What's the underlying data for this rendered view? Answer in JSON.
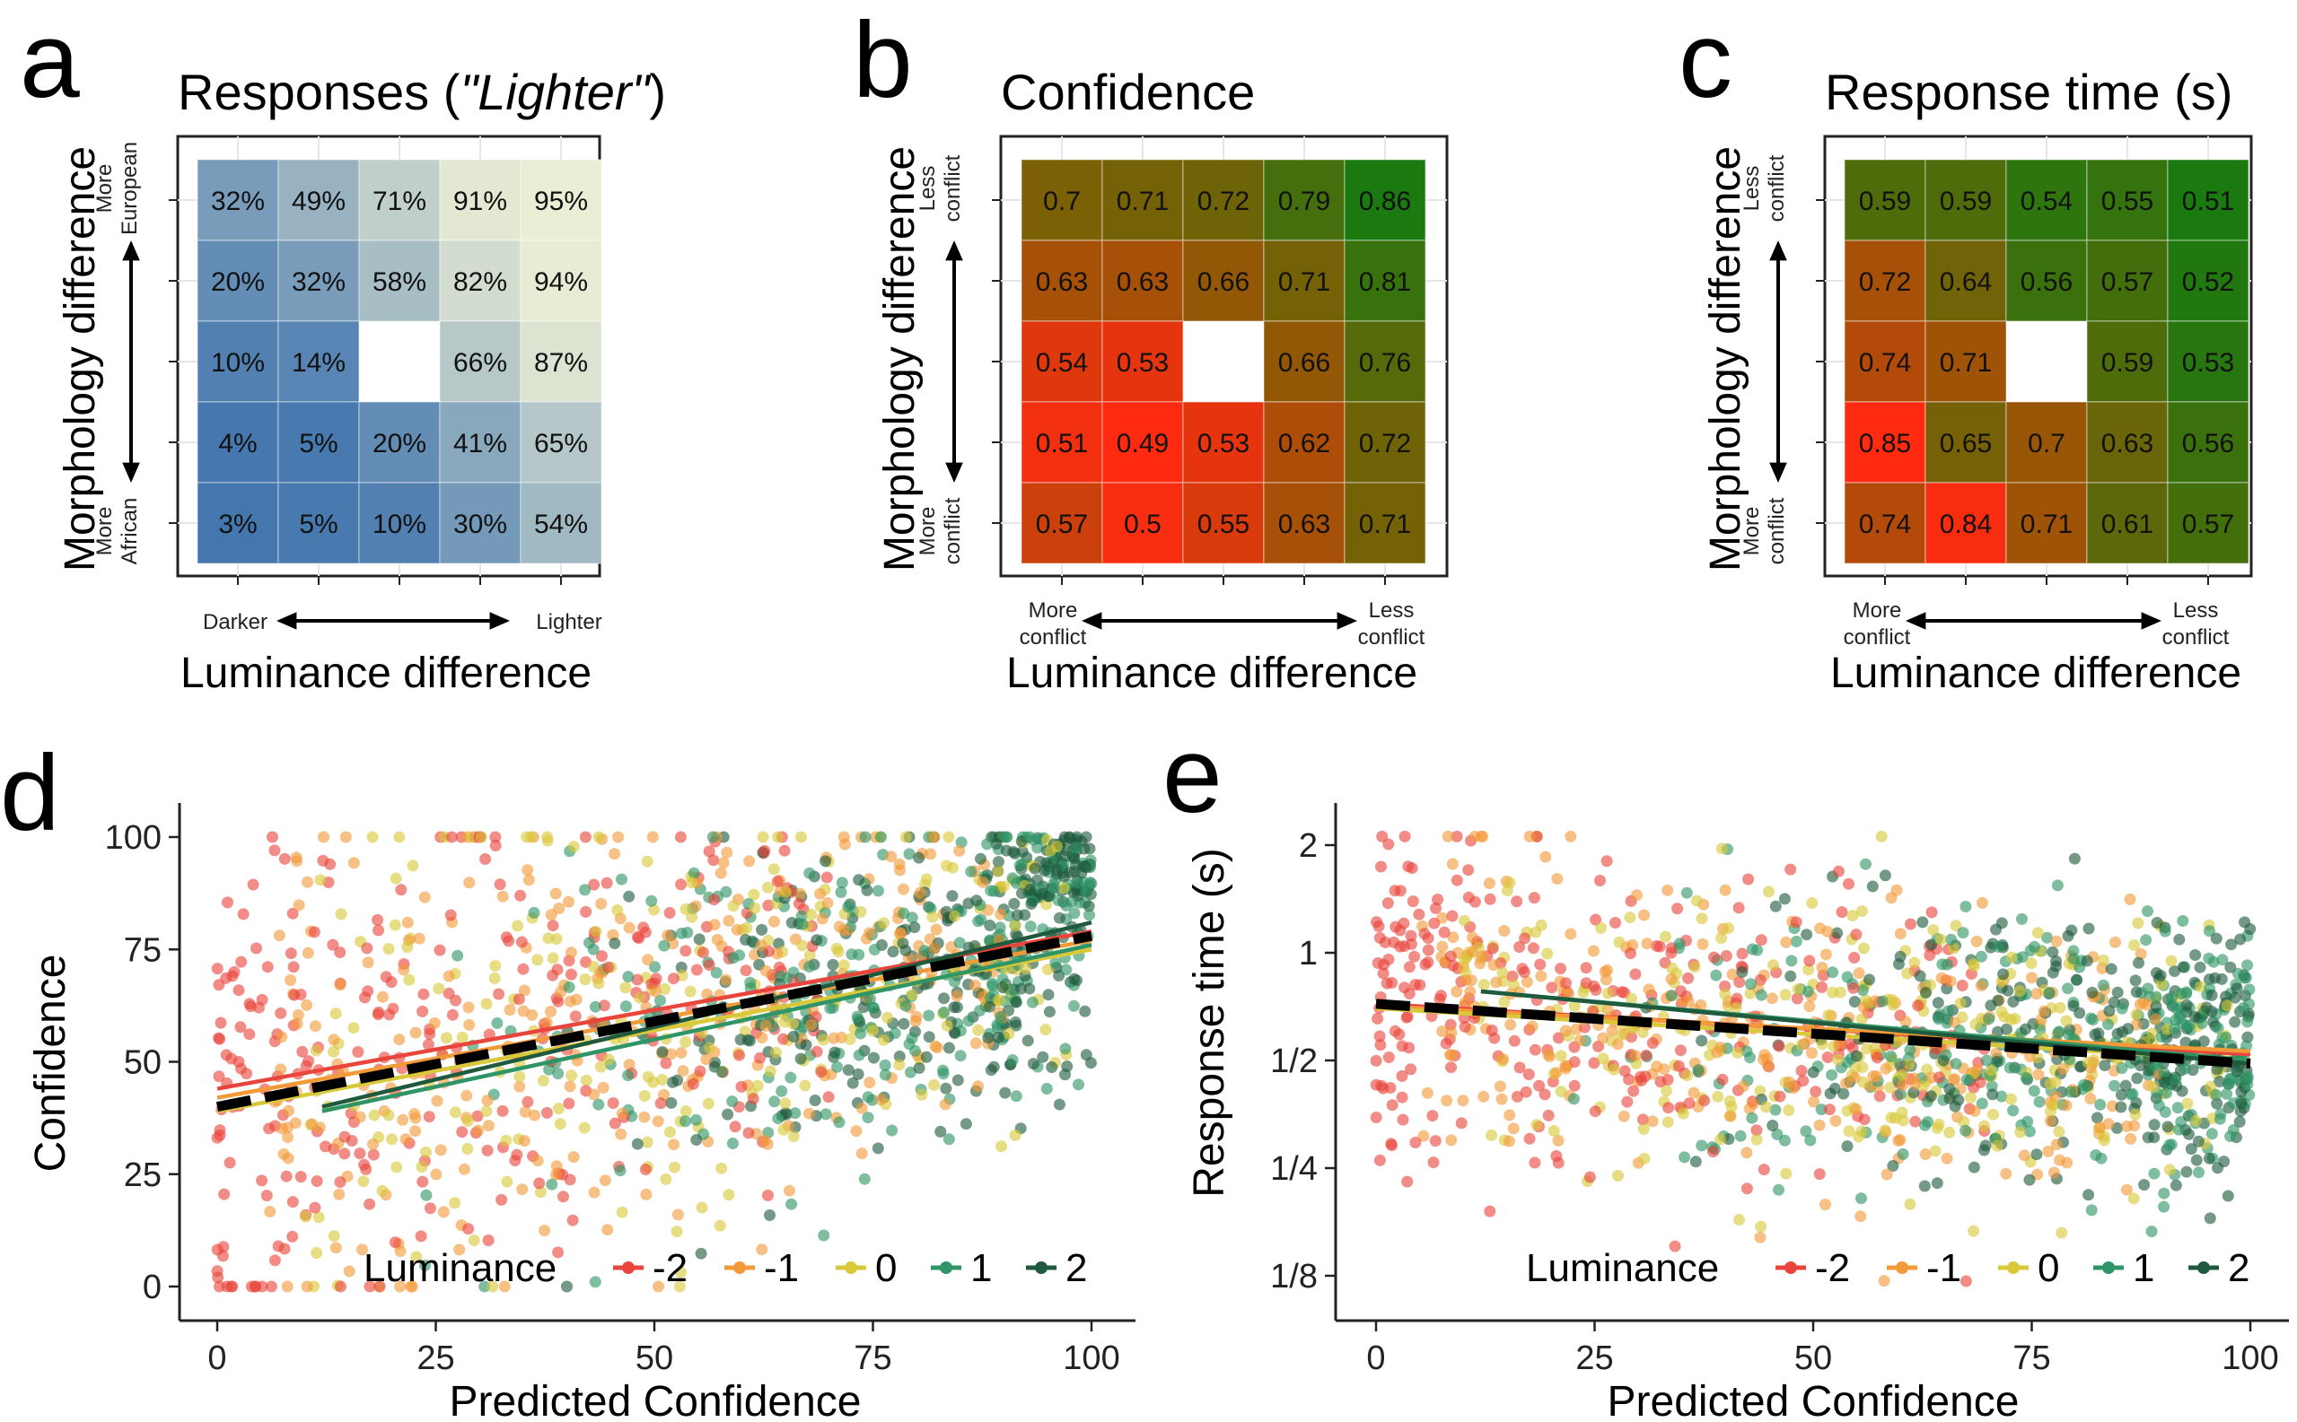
{
  "chart_data": [
    {
      "panel": "a",
      "type": "heatmap",
      "title": "Responses (",
      "title_italic": "\"Lighter\"",
      "title_end": ")",
      "xlabel": "Luminance difference",
      "ylabel": "Morphology difference",
      "x_left_label": "Darker",
      "x_right_label": "Lighter",
      "y_top_label": [
        "More",
        "European"
      ],
      "y_bottom_label": [
        "More",
        "African"
      ],
      "rows_top_to_bottom": [
        [
          "32%",
          "49%",
          "71%",
          "91%",
          "95%"
        ],
        [
          "20%",
          "32%",
          "58%",
          "82%",
          "94%"
        ],
        [
          "10%",
          "14%",
          "",
          "66%",
          "87%"
        ],
        [
          "4%",
          "5%",
          "20%",
          "41%",
          "65%"
        ],
        [
          "3%",
          "5%",
          "10%",
          "30%",
          "54%"
        ]
      ],
      "colors": {
        "low": "#3f73ad",
        "high": "#f4f4d6"
      },
      "value_range": [
        0,
        100
      ]
    },
    {
      "panel": "b",
      "type": "heatmap",
      "title": "Confidence",
      "xlabel": "Luminance difference",
      "ylabel": "Morphology difference",
      "x_left_label": [
        "More",
        "conflict"
      ],
      "x_right_label": [
        "Less",
        "conflict"
      ],
      "y_top_label": [
        "Less",
        "conflict"
      ],
      "y_bottom_label": [
        "More",
        "conflict"
      ],
      "rows_top_to_bottom": [
        [
          "0.7",
          "0.71",
          "0.72",
          "0.79",
          "0.86"
        ],
        [
          "0.63",
          "0.63",
          "0.66",
          "0.71",
          "0.81"
        ],
        [
          "0.54",
          "0.53",
          "",
          "0.66",
          "0.76"
        ],
        [
          "0.51",
          "0.49",
          "0.53",
          "0.62",
          "0.72"
        ],
        [
          "0.57",
          "0.5",
          "0.55",
          "0.63",
          "0.71"
        ]
      ],
      "colors": {
        "low": "#ff2a10",
        "mid": "#8a5c05",
        "high": "#1a7a10"
      },
      "value_range": [
        0.49,
        0.86
      ]
    },
    {
      "panel": "c",
      "type": "heatmap",
      "title": "Response time (s)",
      "xlabel": "Luminance difference",
      "ylabel": "Morphology difference",
      "x_left_label": [
        "More",
        "conflict"
      ],
      "x_right_label": [
        "Less",
        "conflict"
      ],
      "y_top_label": [
        "Less",
        "conflict"
      ],
      "y_bottom_label": [
        "More",
        "conflict"
      ],
      "rows_top_to_bottom": [
        [
          "0.59",
          "0.59",
          "0.54",
          "0.55",
          "0.51"
        ],
        [
          "0.72",
          "0.64",
          "0.56",
          "0.57",
          "0.52"
        ],
        [
          "0.74",
          "0.71",
          "",
          "0.59",
          "0.53"
        ],
        [
          "0.85",
          "0.65",
          "0.7",
          "0.63",
          "0.56"
        ],
        [
          "0.74",
          "0.84",
          "0.71",
          "0.61",
          "0.57"
        ]
      ],
      "colors": {
        "low": "#1a7a10",
        "mid": "#8a5c05",
        "high": "#ff2a10"
      },
      "value_range": [
        0.51,
        0.85
      ]
    },
    {
      "panel": "d",
      "type": "scatter",
      "xlabel": "Predicted Confidence",
      "ylabel": "Confidence",
      "xlim": [
        0,
        100
      ],
      "ylim": [
        0,
        100
      ],
      "xticks": [
        "0",
        "25",
        "50",
        "75",
        "100"
      ],
      "yticks": [
        "0",
        "25",
        "50",
        "75",
        "100"
      ],
      "legend_title": "Luminance",
      "legend": [
        {
          "label": "-2",
          "color": "#e8463c"
        },
        {
          "label": "-1",
          "color": "#f29a38"
        },
        {
          "label": "0",
          "color": "#d8c83a"
        },
        {
          "label": "1",
          "color": "#2f9466"
        },
        {
          "label": "2",
          "color": "#1f5a3e"
        }
      ],
      "fit_lines": [
        {
          "name": "-2",
          "x": [
            0,
            100
          ],
          "y": [
            44,
            79
          ]
        },
        {
          "name": "-1",
          "x": [
            0,
            100
          ],
          "y": [
            42,
            77
          ]
        },
        {
          "name": "0",
          "x": [
            0,
            100
          ],
          "y": [
            39,
            75
          ]
        },
        {
          "name": "1",
          "x": [
            12,
            100
          ],
          "y": [
            39,
            76
          ]
        },
        {
          "name": "2",
          "x": [
            12,
            100
          ],
          "y": [
            40,
            81
          ]
        },
        {
          "name": "overall",
          "x": [
            0,
            100
          ],
          "y": [
            40,
            78
          ],
          "dashed": true
        }
      ]
    },
    {
      "panel": "e",
      "type": "scatter",
      "xlabel": "Predicted Confidence",
      "ylabel": "Response time (s)",
      "xlim": [
        0,
        100
      ],
      "ylim_log2": [
        -3.2,
        1.2
      ],
      "xticks": [
        "0",
        "25",
        "50",
        "75",
        "100"
      ],
      "yticks": [
        {
          "label": "1/8",
          "value": 0.125
        },
        {
          "label": "1/4",
          "value": 0.25
        },
        {
          "label": "1/2",
          "value": 0.5
        },
        {
          "label": "1",
          "value": 1
        },
        {
          "label": "2",
          "value": 2
        }
      ],
      "legend_title": "Luminance",
      "legend": [
        {
          "label": "-2",
          "color": "#e8463c"
        },
        {
          "label": "-1",
          "color": "#f29a38"
        },
        {
          "label": "0",
          "color": "#d8c83a"
        },
        {
          "label": "1",
          "color": "#2f9466"
        },
        {
          "label": "2",
          "color": "#1f5a3e"
        }
      ],
      "fit_lines": [
        {
          "name": "-2",
          "x": [
            0,
            100
          ],
          "y": [
            0.72,
            0.52
          ]
        },
        {
          "name": "-1",
          "x": [
            0,
            100
          ],
          "y": [
            0.71,
            0.53
          ]
        },
        {
          "name": "0",
          "x": [
            0,
            100
          ],
          "y": [
            0.7,
            0.5
          ]
        },
        {
          "name": "1",
          "x": [
            12,
            100
          ],
          "y": [
            0.78,
            0.5
          ]
        },
        {
          "name": "2",
          "x": [
            12,
            100
          ],
          "y": [
            0.78,
            0.49
          ]
        },
        {
          "name": "overall",
          "x": [
            0,
            100
          ],
          "y": [
            0.72,
            0.49
          ],
          "dashed": true
        }
      ]
    }
  ],
  "panel_letters": [
    "a",
    "b",
    "c",
    "d",
    "e"
  ]
}
